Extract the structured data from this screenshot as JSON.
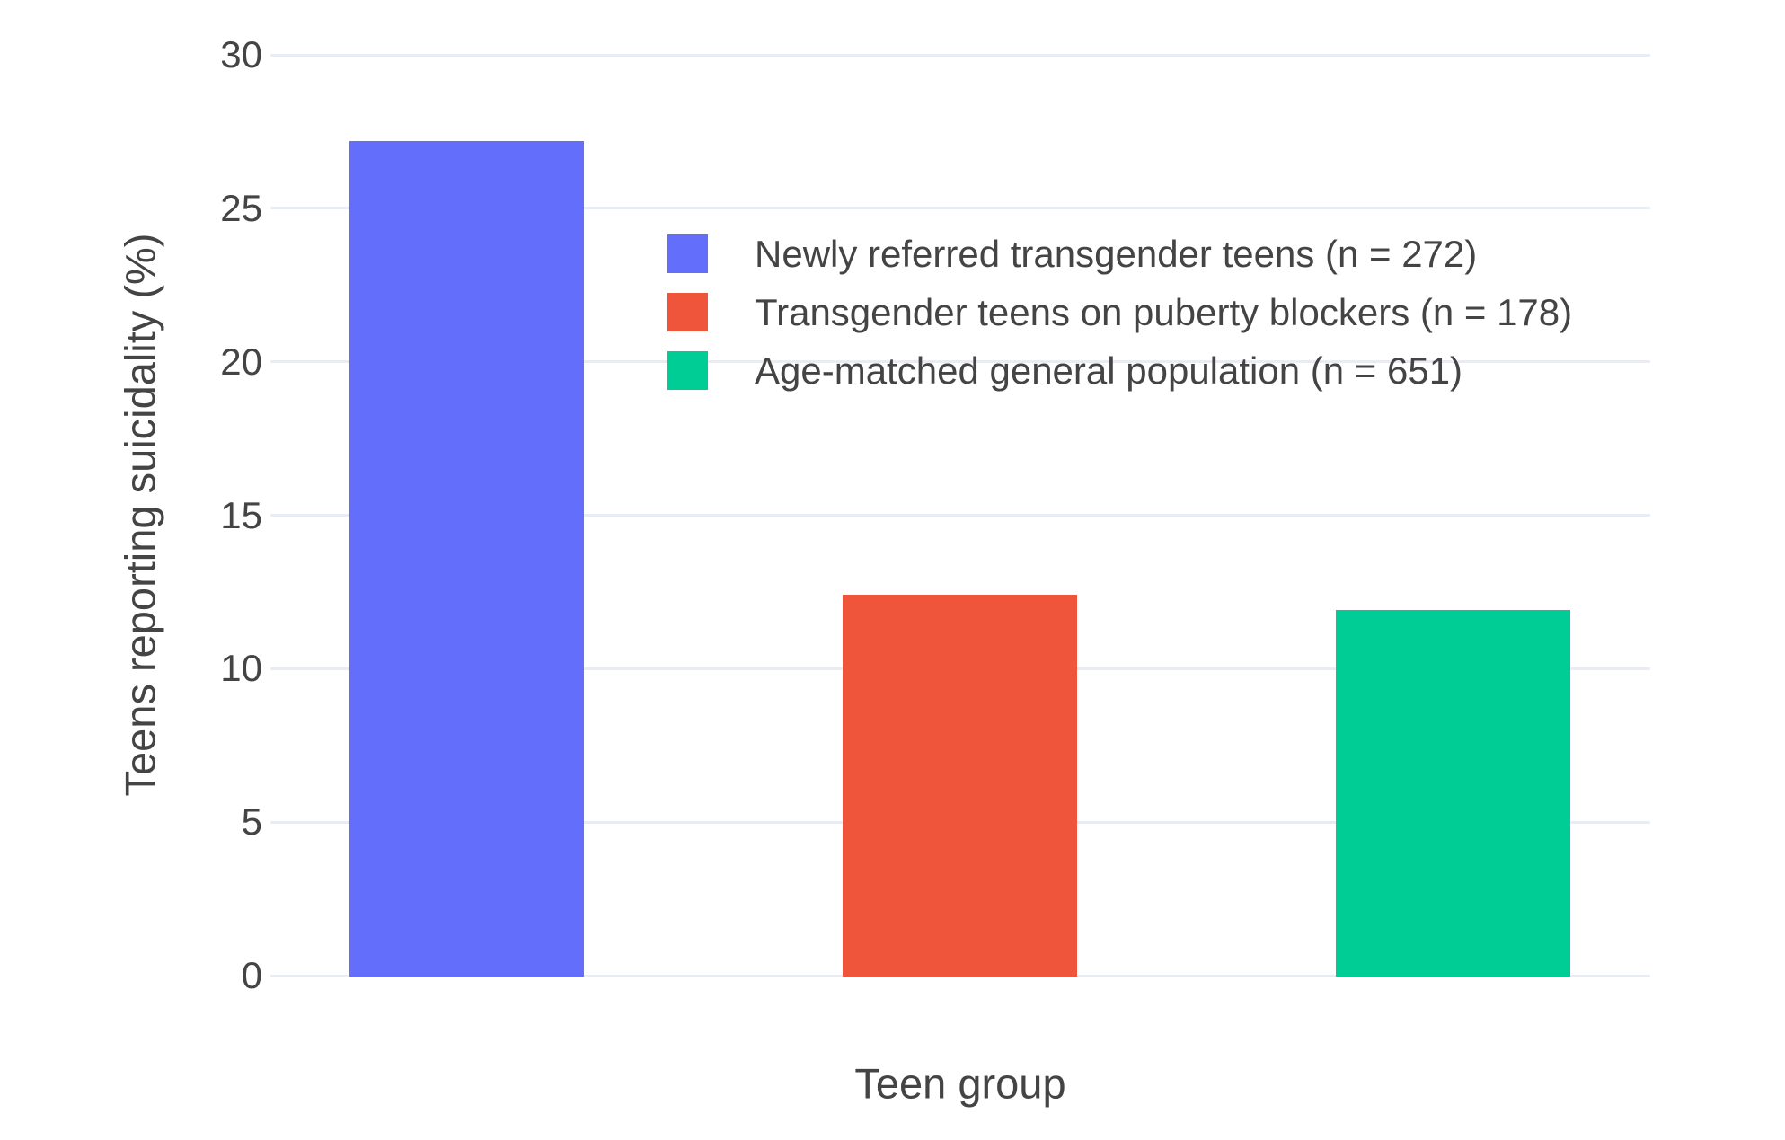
{
  "chart_data": {
    "type": "bar",
    "title": "",
    "xlabel": "Teen group",
    "ylabel": "Teens reporting suicidality (%)",
    "categories": [
      "Newly referred transgender teens (n = 272)",
      "Transgender teens on puberty blockers (n = 178)",
      "Age-matched general population (n = 651)"
    ],
    "values": [
      27.2,
      12.4,
      11.9
    ],
    "bar_colors": [
      "#636EFA",
      "#EF553B",
      "#00CC96"
    ],
    "yticks": [
      0,
      5,
      10,
      15,
      20,
      25,
      30
    ],
    "ylim": [
      0,
      30
    ],
    "grid": true,
    "legend_position": "inside-top-center",
    "legend": [
      {
        "label": "Newly referred transgender teens (n = 272)",
        "color": "#636EFA"
      },
      {
        "label": "Transgender teens on puberty blockers (n = 178)",
        "color": "#EF553B"
      },
      {
        "label": "Age-matched general population (n = 651)",
        "color": "#00CC96"
      }
    ]
  },
  "colors": {
    "background": "#FFFFFF",
    "grid": "#E8EDF5",
    "text": "#444444"
  }
}
